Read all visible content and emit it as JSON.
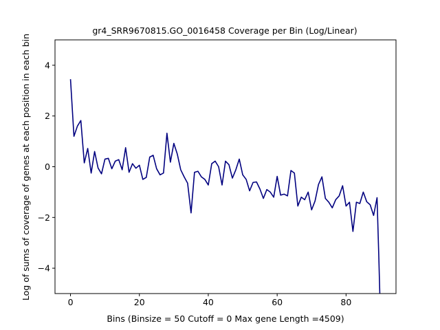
{
  "chart_data": {
    "type": "line",
    "title": "gr4_SRR9670815.GO_0016458 Coverage per Bin (Log/Linear)",
    "xlabel": "Bins  (Binsize = 50 Cutoff = 0 Max gene Length =4509)",
    "ylabel": "Log of sums of coverage of genes at each position in each bin",
    "xlim": [
      -4.5,
      94.5
    ],
    "ylim": [
      -5,
      5
    ],
    "xticks": [
      0,
      20,
      40,
      60,
      80
    ],
    "yticks": [
      -4,
      -2,
      0,
      2,
      4
    ],
    "grid": false,
    "line_color": "#00007f",
    "series": [
      {
        "x": [
          0,
          1,
          2,
          3,
          4,
          5,
          6,
          7,
          8,
          9,
          10,
          11,
          12,
          13,
          14,
          15,
          16,
          17,
          18,
          19,
          20,
          21,
          22,
          23,
          24,
          25,
          26,
          27,
          28,
          29,
          30,
          31,
          32,
          33,
          34,
          35,
          36,
          37,
          38,
          39,
          40,
          41,
          42,
          43,
          44,
          45,
          46,
          47,
          48,
          49,
          50,
          51,
          52,
          53,
          54,
          55,
          56,
          57,
          58,
          59,
          60,
          61,
          62,
          63,
          64,
          65,
          66,
          67,
          68,
          69,
          70,
          71,
          72,
          73,
          74,
          75,
          76,
          77,
          78,
          79,
          80,
          81,
          82,
          83,
          84,
          85,
          86,
          87,
          88,
          89,
          89.5,
          89.7,
          89.9
        ],
        "values": [
          3.45,
          1.2,
          1.6,
          1.82,
          0.15,
          0.72,
          -0.25,
          0.6,
          -0.05,
          -0.28,
          0.3,
          0.33,
          -0.08,
          0.22,
          0.28,
          -0.12,
          0.75,
          -0.22,
          0.12,
          -0.06,
          0.06,
          -0.5,
          -0.42,
          0.38,
          0.45,
          -0.08,
          -0.32,
          -0.25,
          1.32,
          0.18,
          0.92,
          0.5,
          -0.12,
          -0.4,
          -0.65,
          -1.82,
          -0.22,
          -0.18,
          -0.4,
          -0.5,
          -0.72,
          0.12,
          0.22,
          0.0,
          -0.72,
          0.22,
          0.08,
          -0.45,
          -0.12,
          0.3,
          -0.32,
          -0.5,
          -0.95,
          -0.62,
          -0.6,
          -0.88,
          -1.25,
          -0.9,
          -1.0,
          -1.2,
          -0.38,
          -1.12,
          -1.08,
          -1.15,
          -0.15,
          -0.25,
          -1.55,
          -1.2,
          -1.3,
          -1.0,
          -1.7,
          -1.35,
          -0.7,
          -0.4,
          -1.25,
          -1.4,
          -1.62,
          -1.3,
          -1.15,
          -0.75,
          -1.55,
          -1.4,
          -2.55,
          -1.4,
          -1.45,
          -1.0,
          -1.38,
          -1.5,
          -1.92,
          -1.22,
          -3.5,
          -4.5,
          -5.5
        ]
      }
    ]
  }
}
